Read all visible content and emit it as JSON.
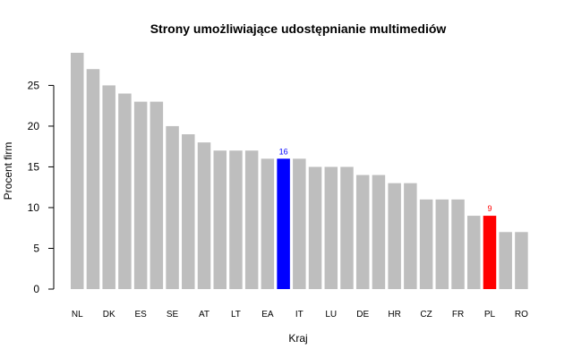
{
  "chart_data": {
    "type": "bar",
    "title": "Strony umożliwiające udostępnianie multimediów",
    "xlabel": "Kraj",
    "ylabel": "Procent firm",
    "ylim": [
      0,
      29
    ],
    "yticks": [
      0,
      5,
      10,
      15,
      20,
      25
    ],
    "categories": [
      "NL",
      "",
      "DK",
      "",
      "ES",
      "",
      "SE",
      "",
      "AT",
      "",
      "LT",
      "",
      "EA",
      "",
      "IT",
      "",
      "LU",
      "",
      "DE",
      "",
      "HR",
      "",
      "CZ",
      "",
      "FR",
      "",
      "PL",
      "",
      "RO"
    ],
    "values": [
      29,
      27,
      25,
      24,
      23,
      23,
      20,
      19,
      18,
      17,
      17,
      17,
      16,
      16,
      16,
      15,
      15,
      15,
      14,
      14,
      13,
      13,
      11,
      11,
      11,
      9,
      9,
      7,
      7
    ],
    "colors": {
      "default": "#bebebe",
      "highlight_ea": "#0000ff",
      "highlight_pl": "#ff0000"
    },
    "highlights": [
      {
        "index": 13,
        "color": "#0000ff",
        "label": "16"
      },
      {
        "index": 26,
        "color": "#ff0000",
        "label": "9"
      }
    ],
    "grid": false,
    "legend": "none"
  }
}
